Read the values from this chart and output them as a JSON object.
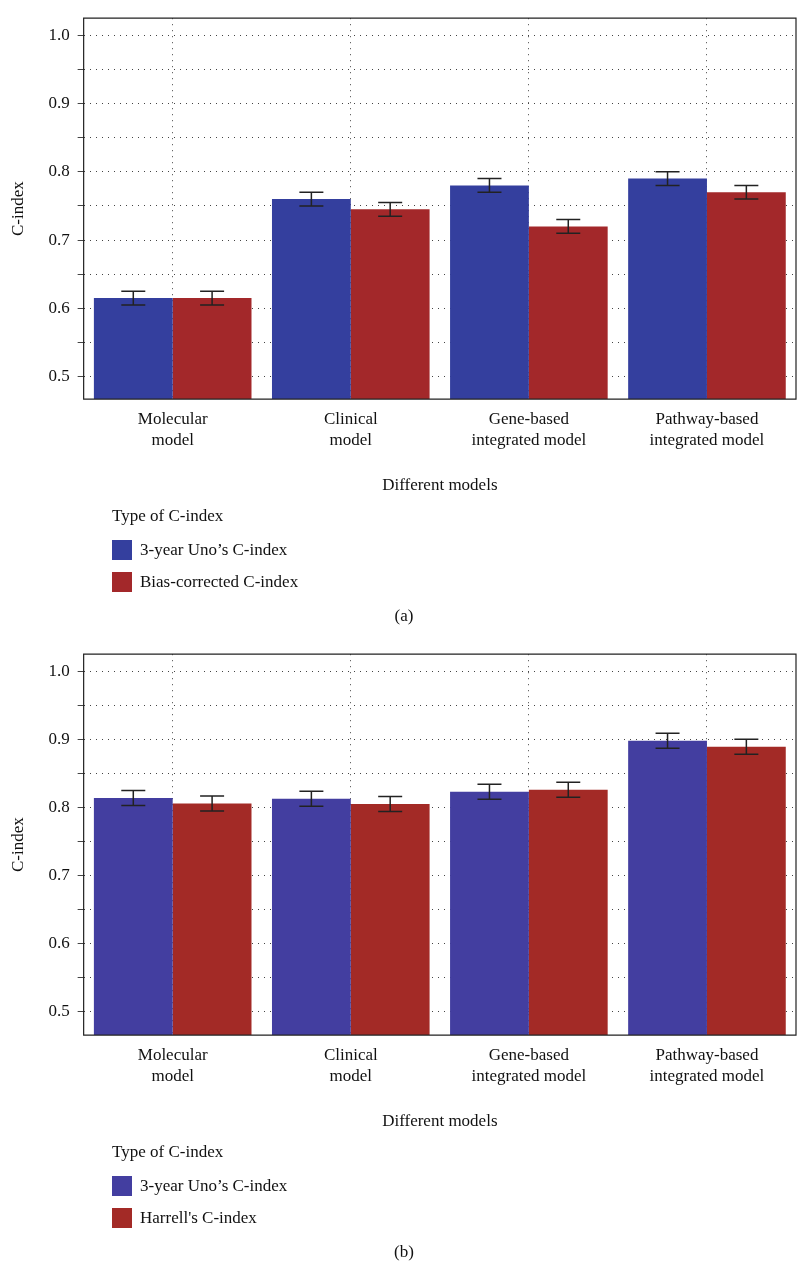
{
  "chart_data": [
    {
      "type": "bar",
      "xlabel": "Different models",
      "ylabel": "C-index",
      "legend_title": "Type of C-index",
      "legend": "bottom",
      "grid": true,
      "categories": [
        "Molecular model",
        "Clinical model",
        "Gene-based integrated model",
        "Pathway-based integrated model"
      ],
      "ylim": [
        0.467,
        1.025
      ],
      "yticks": [
        0.5,
        {
          "value": 0.55,
          "label": null
        },
        0.6,
        {
          "value": 0.65,
          "label": null
        },
        0.7,
        {
          "value": 0.75,
          "label": null
        },
        0.8,
        {
          "value": 0.85,
          "label": null
        },
        0.9,
        {
          "value": 0.95,
          "label": null
        },
        {
          "value": 1,
          "label": "1.0"
        }
      ],
      "series": [
        {
          "name": "3-year Uno’s C-index",
          "color": "#343f9e",
          "values": [
            0.615,
            0.76,
            0.78,
            0.79
          ],
          "errors": [
            0.01,
            0.01,
            0.01,
            0.01
          ]
        },
        {
          "name": "Bias-corrected C-index",
          "color": "#a3282a",
          "values": [
            0.615,
            0.745,
            0.72,
            0.77
          ],
          "errors": [
            0.01,
            0.01,
            0.01,
            0.01
          ]
        }
      ],
      "annotations": [
        "(a)"
      ]
    },
    {
      "type": "bar",
      "xlabel": "Different models",
      "ylabel": "C-index",
      "legend_title": "Type of C-index",
      "legend": "bottom",
      "grid": true,
      "categories": [
        "Molecular model",
        "Clinical model",
        "Gene-based integrated model",
        "Pathway-based integrated model"
      ],
      "ylim": [
        0.466,
        1.025
      ],
      "yticks": [
        0.5,
        {
          "value": 0.55,
          "label": null
        },
        0.6,
        {
          "value": 0.65,
          "label": null
        },
        0.7,
        {
          "value": 0.75,
          "label": null
        },
        0.8,
        {
          "value": 0.85,
          "label": null
        },
        0.9,
        {
          "value": 0.95,
          "label": null
        },
        {
          "value": 1,
          "label": "1.0"
        }
      ],
      "series": [
        {
          "name": "3-year Uno’s C-index",
          "color": "#433ea0",
          "values": [
            0.814,
            0.813,
            0.823,
            0.898
          ],
          "errors": [
            0.011,
            0.011,
            0.011,
            0.011
          ]
        },
        {
          "name": "Harrell's C-index",
          "color": "#a32a26",
          "values": [
            0.806,
            0.805,
            0.826,
            0.889
          ],
          "errors": [
            0.011,
            0.011,
            0.011,
            0.011
          ]
        }
      ],
      "annotations": [
        "(b)"
      ]
    }
  ]
}
